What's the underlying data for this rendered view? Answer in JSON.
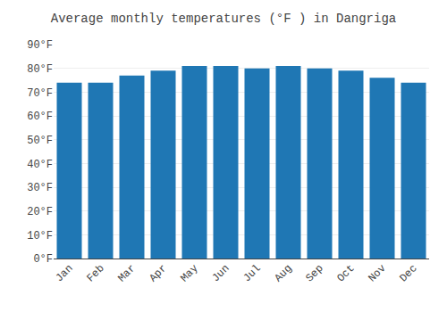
{
  "chart_data": {
    "type": "bar",
    "title": "Average monthly temperatures (°F ) in Dangriga",
    "categories": [
      "Jan",
      "Feb",
      "Mar",
      "Apr",
      "May",
      "Jun",
      "Jul",
      "Aug",
      "Sep",
      "Oct",
      "Nov",
      "Dec"
    ],
    "values": [
      74,
      74,
      77,
      79,
      81,
      81,
      80,
      81,
      80,
      79,
      76,
      74
    ],
    "ylim": [
      0,
      90
    ],
    "yticks": [
      {
        "value": 0,
        "label": "0°F"
      },
      {
        "value": 10,
        "label": "10°F"
      },
      {
        "value": 20,
        "label": "20°F"
      },
      {
        "value": 30,
        "label": "30°F"
      },
      {
        "value": 40,
        "label": "40°F"
      },
      {
        "value": 50,
        "label": "50°F"
      },
      {
        "value": 60,
        "label": "60°F"
      },
      {
        "value": 70,
        "label": "70°F"
      },
      {
        "value": 80,
        "label": "80°F"
      },
      {
        "value": 90,
        "label": "90°F"
      }
    ],
    "grid": true
  }
}
